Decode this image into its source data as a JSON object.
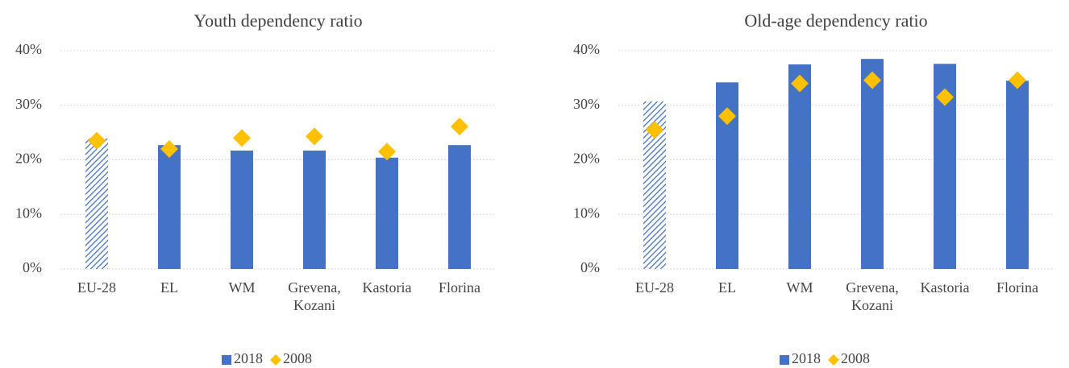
{
  "chart_data": [
    {
      "type": "bar",
      "title": "Youth dependency ratio",
      "categories": [
        "EU-28",
        "EL",
        "WM",
        "Grevena, Kozani",
        "Kastoria",
        "Florina"
      ],
      "series": [
        {
          "name": "2018",
          "color": "#4472c4",
          "marker": "bar",
          "hatched": [
            true,
            false,
            false,
            false,
            false,
            false
          ],
          "values": [
            23.9,
            22.7,
            21.7,
            21.7,
            20.4,
            22.7
          ]
        },
        {
          "name": "2008",
          "color": "#ffc000",
          "marker": "diamond",
          "values": [
            23.5,
            22.0,
            24.0,
            24.3,
            21.5,
            26.1
          ]
        }
      ],
      "ylim": [
        0,
        40
      ],
      "yticks": [
        {
          "value": 0,
          "label": "0%"
        },
        {
          "value": 10,
          "label": "10%"
        },
        {
          "value": 20,
          "label": "20%"
        },
        {
          "value": 30,
          "label": "30%"
        },
        {
          "value": 40,
          "label": "40%"
        }
      ],
      "grid": true,
      "legend": "bottom"
    },
    {
      "type": "bar",
      "title": "Old-age dependency ratio",
      "categories": [
        "EU-28",
        "EL",
        "WM",
        "Grevena, Kozani",
        "Kastoria",
        "Florina"
      ],
      "series": [
        {
          "name": "2018",
          "color": "#4472c4",
          "marker": "bar",
          "hatched": [
            true,
            false,
            false,
            false,
            false,
            false
          ],
          "values": [
            30.7,
            34.2,
            37.5,
            38.5,
            37.6,
            34.5
          ]
        },
        {
          "name": "2008",
          "color": "#ffc000",
          "marker": "diamond",
          "values": [
            25.5,
            28.0,
            34.0,
            34.6,
            31.5,
            34.6
          ]
        }
      ],
      "ylim": [
        0,
        40
      ],
      "yticks": [
        {
          "value": 0,
          "label": "0%"
        },
        {
          "value": 10,
          "label": "10%"
        },
        {
          "value": 20,
          "label": "20%"
        },
        {
          "value": 30,
          "label": "30%"
        },
        {
          "value": 40,
          "label": "40%"
        }
      ],
      "grid": true,
      "legend": "bottom"
    }
  ]
}
